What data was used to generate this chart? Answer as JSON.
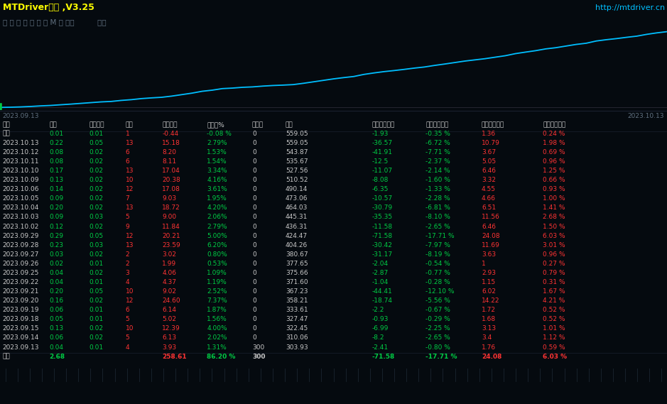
{
  "title": "MTDriver统计 ,V3.25",
  "url": "http://mtdriver.cn",
  "nav_items": "综 日 周 月 季 年 币 M 备 账户          路径",
  "bg_color": "#050a0f",
  "chart_bg": "#050a0f",
  "chart_line_color": "#00bfff",
  "chart_baseline_color": "#2a2a35",
  "date_start": "2023.09.13",
  "date_end": "2023.10.13",
  "curve_y": [
    303.93,
    304.5,
    305.5,
    307,
    309,
    310.5,
    312.8,
    315,
    317.5,
    320,
    322.45,
    324,
    327.47,
    330,
    333.61,
    336,
    338,
    342,
    347,
    352,
    358.21,
    362,
    367.23,
    369,
    371.6,
    373,
    375.66,
    377.65,
    379,
    380.67,
    385,
    390,
    395,
    400,
    404.26,
    408,
    415,
    420,
    424.47,
    428,
    432,
    436.31,
    440,
    445.31,
    450,
    455,
    460,
    464.03,
    468,
    473.06,
    478,
    485,
    490.14,
    495,
    501,
    505,
    510.52,
    516,
    520,
    527.56,
    532,
    535.67,
    540,
    543.87,
    550,
    555,
    559.05
  ],
  "header_cols": [
    "日期",
    "手数",
    "最大手数",
    "次数",
    "盈亏金额",
    "百分比%",
    "出入金",
    "余额",
    "",
    "最大浮亏金额",
    "最大浮亏比例",
    "最大浮盈金额",
    "最大浮盈比例"
  ],
  "holding_row": [
    "持仓",
    "0.01",
    "0.01",
    "1",
    "-0.44",
    "-0.08 %",
    "0",
    "559.05",
    "",
    "-1.93",
    "-0.35 %",
    "1.36",
    "0.24 %"
  ],
  "rows": [
    [
      "2023.10.13",
      "0.22",
      "0.05",
      "13",
      "15.18",
      "2.79%",
      "0",
      "559.05",
      "-36.57",
      "-6.72 %",
      "10.79",
      "1.98 %"
    ],
    [
      "2023.10.12",
      "0.08",
      "0.02",
      "6",
      "8.20",
      "1.53%",
      "0",
      "543.87",
      "-41.91",
      "-7.71 %",
      "3.67",
      "0.69 %"
    ],
    [
      "2023.10.11",
      "0.08",
      "0.02",
      "6",
      "8.11",
      "1.54%",
      "0",
      "535.67",
      "-12.5",
      "-2.37 %",
      "5.05",
      "0.96 %"
    ],
    [
      "2023.10.10",
      "0.17",
      "0.02",
      "13",
      "17.04",
      "3.34%",
      "0",
      "527.56",
      "-11.07",
      "-2.14 %",
      "6.46",
      "1.25 %"
    ],
    [
      "2023.10.09",
      "0.13",
      "0.02",
      "10",
      "20.38",
      "4.16%",
      "0",
      "510.52",
      "-8.08",
      "-1.60 %",
      "3.32",
      "0.66 %"
    ],
    [
      "2023.10.06",
      "0.14",
      "0.02",
      "12",
      "17.08",
      "3.61%",
      "0",
      "490.14",
      "-6.35",
      "-1.33 %",
      "4.55",
      "0.93 %"
    ],
    [
      "2023.10.05",
      "0.09",
      "0.02",
      "7",
      "9.03",
      "1.95%",
      "0",
      "473.06",
      "-10.57",
      "-2.28 %",
      "4.66",
      "1.00 %"
    ],
    [
      "2023.10.04",
      "0.20",
      "0.02",
      "13",
      "18.72",
      "4.20%",
      "0",
      "464.03",
      "-30.79",
      "-6.81 %",
      "6.51",
      "1.41 %"
    ],
    [
      "2023.10.03",
      "0.09",
      "0.03",
      "5",
      "9.00",
      "2.06%",
      "0",
      "445.31",
      "-35.35",
      "-8.10 %",
      "11.56",
      "2.68 %"
    ],
    [
      "2023.10.02",
      "0.12",
      "0.02",
      "9",
      "11.84",
      "2.79%",
      "0",
      "436.31",
      "-11.58",
      "-2.65 %",
      "6.46",
      "1.50 %"
    ],
    [
      "2023.09.29",
      "0.29",
      "0.05",
      "12",
      "20.21",
      "5.00%",
      "0",
      "424.47",
      "-71.58",
      "-17.71 %",
      "24.08",
      "6.03 %"
    ],
    [
      "2023.09.28",
      "0.23",
      "0.03",
      "13",
      "23.59",
      "6.20%",
      "0",
      "404.26",
      "-30.42",
      "-7.97 %",
      "11.69",
      "3.01 %"
    ],
    [
      "2023.09.27",
      "0.03",
      "0.02",
      "2",
      "3.02",
      "0.80%",
      "0",
      "380.67",
      "-31.17",
      "-8.19 %",
      "3.63",
      "0.96 %"
    ],
    [
      "2023.09.26",
      "0.02",
      "0.01",
      "2",
      "1.99",
      "0.53%",
      "0",
      "377.65",
      "-2.04",
      "-0.54 %",
      "1",
      "0.27 %"
    ],
    [
      "2023.09.25",
      "0.04",
      "0.02",
      "3",
      "4.06",
      "1.09%",
      "0",
      "375.66",
      "-2.87",
      "-0.77 %",
      "2.93",
      "0.79 %"
    ],
    [
      "2023.09.22",
      "0.04",
      "0.01",
      "4",
      "4.37",
      "1.19%",
      "0",
      "371.60",
      "-1.04",
      "-0.28 %",
      "1.15",
      "0.31 %"
    ],
    [
      "2023.09.21",
      "0.20",
      "0.05",
      "10",
      "9.02",
      "2.52%",
      "0",
      "367.23",
      "-44.41",
      "-12.10 %",
      "6.02",
      "1.67 %"
    ],
    [
      "2023.09.20",
      "0.16",
      "0.02",
      "12",
      "24.60",
      "7.37%",
      "0",
      "358.21",
      "-18.74",
      "-5.56 %",
      "14.22",
      "4.21 %"
    ],
    [
      "2023.09.19",
      "0.06",
      "0.01",
      "6",
      "6.14",
      "1.87%",
      "0",
      "333.61",
      "-2.2",
      "-0.67 %",
      "1.72",
      "0.52 %"
    ],
    [
      "2023.09.18",
      "0.05",
      "0.01",
      "5",
      "5.02",
      "1.56%",
      "0",
      "327.47",
      "-0.93",
      "-0.29 %",
      "1.68",
      "0.52 %"
    ],
    [
      "2023.09.15",
      "0.13",
      "0.02",
      "10",
      "12.39",
      "4.00%",
      "0",
      "322.45",
      "-6.99",
      "-2.25 %",
      "3.13",
      "1.01 %"
    ],
    [
      "2023.09.14",
      "0.06",
      "0.02",
      "5",
      "6.13",
      "2.02%",
      "0",
      "310.06",
      "-8.2",
      "-2.65 %",
      "3.4",
      "1.12 %"
    ],
    [
      "2023.09.13",
      "0.04",
      "0.01",
      "4",
      "3.93",
      "1.31%",
      "300",
      "303.93",
      "-2.41",
      "-0.80 %",
      "1.76",
      "0.59 %"
    ]
  ],
  "total_row": [
    "合计",
    "2.68",
    "",
    "",
    "258.61",
    "86.20 %",
    "300",
    "",
    "",
    "-71.58",
    "-17.71 %",
    "24.08",
    "6.03 %"
  ],
  "title_bg": "#0d1117",
  "nav_bg": "#050a0f",
  "title_color": "#ffff00",
  "url_color": "#00bfff",
  "nav_color": "#607080",
  "white": "#c8c8c8",
  "green": "#00cc44",
  "red": "#ff3333",
  "total_bg": "#0d1117",
  "bottom_bg": "#020408",
  "separator_color": "#1a2030",
  "date_label_color": "#607080"
}
